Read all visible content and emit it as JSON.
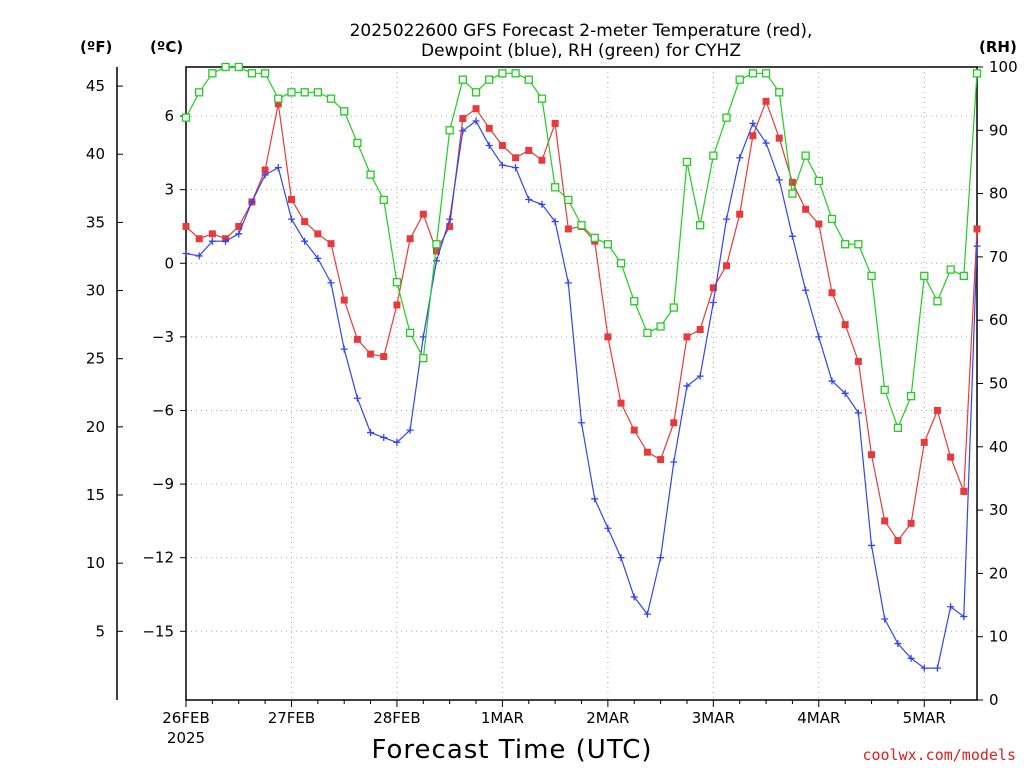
{
  "chart_data": {
    "type": "line",
    "title_line1": "2025022600 GFS Forecast 2-meter Temperature (red),",
    "title_line2": "Dewpoint (blue), RH (green) for CYHZ",
    "left_outer_unit": "(ºF)",
    "left_inner_unit": "(ºC)",
    "right_unit": "(RH)",
    "xlabel": "Forecast Time (UTC)",
    "credit": "coolwx.com/models",
    "fahrenheit_ticks": [
      "5",
      "10",
      "15",
      "20",
      "25",
      "30",
      "35",
      "40",
      "45"
    ],
    "celsius_ticks": [
      6,
      3,
      0,
      -3,
      -6,
      -9,
      -12,
      -15
    ],
    "celsius_tick_labels": [
      "6",
      "3",
      "0",
      "−3",
      "−6",
      "−9",
      "−12",
      "−15"
    ],
    "rh_ticks": [
      "0",
      "10",
      "20",
      "30",
      "40",
      "50",
      "60",
      "70",
      "80",
      "90",
      "100"
    ],
    "x_tick_labels": [
      "26FEB",
      "27FEB",
      "28FEB",
      "1MAR",
      "2MAR",
      "3MAR",
      "4MAR",
      "5MAR"
    ],
    "x_year_label": "2025",
    "x_unit": "hours since 2025-02-26 00 UTC",
    "xlim": [
      0,
      180
    ],
    "celsius_lim": [
      -17.8,
      8.0
    ],
    "rh_lim": [
      0,
      100
    ],
    "grid": true,
    "series": [
      {
        "name": "2-meter Temperature",
        "unit": "°C",
        "color": "#e83a3a",
        "marker": "square-filled",
        "x": [
          0,
          3,
          6,
          9,
          12,
          15,
          18,
          21,
          24,
          27,
          30,
          33,
          36,
          39,
          42,
          45,
          48,
          51,
          54,
          57,
          60,
          63,
          66,
          69,
          72,
          75,
          78,
          81,
          84,
          87,
          90,
          93,
          96,
          99,
          102,
          105,
          108,
          111,
          114,
          117,
          120,
          123,
          126,
          129,
          132,
          135,
          138,
          141,
          144,
          147,
          150,
          153,
          156,
          159,
          162,
          165,
          168,
          171,
          174,
          177,
          180
        ],
        "values": [
          1.5,
          1.0,
          1.2,
          1.0,
          1.5,
          2.5,
          3.8,
          6.5,
          2.6,
          1.7,
          1.2,
          0.8,
          -1.5,
          -3.1,
          -3.7,
          -3.8,
          -1.7,
          1.0,
          2.0,
          0.5,
          1.5,
          5.9,
          6.3,
          5.5,
          4.8,
          4.3,
          4.6,
          4.2,
          5.7,
          1.4,
          1.5,
          0.9,
          -3.0,
          -5.7,
          -6.8,
          -7.7,
          -8.0,
          -6.5,
          -3.0,
          -2.7,
          -1.0,
          -0.1,
          2.0,
          5.2,
          6.6,
          5.1,
          3.3,
          2.2,
          1.6,
          -1.2,
          -2.5,
          -4.0,
          -7.8,
          -10.5,
          -11.3,
          -10.6,
          -7.3,
          -6.0,
          -7.9,
          -9.3,
          1.4
        ]
      },
      {
        "name": "Dewpoint",
        "unit": "°C",
        "color": "#3344ee",
        "marker": "plus",
        "x": [
          0,
          3,
          6,
          9,
          12,
          15,
          18,
          21,
          24,
          27,
          30,
          33,
          36,
          39,
          42,
          45,
          48,
          51,
          54,
          57,
          60,
          63,
          66,
          69,
          72,
          75,
          78,
          81,
          84,
          87,
          90,
          93,
          96,
          99,
          102,
          105,
          108,
          111,
          114,
          117,
          120,
          123,
          126,
          129,
          132,
          135,
          138,
          141,
          144,
          147,
          150,
          153,
          156,
          159,
          162,
          165,
          168,
          171,
          174,
          177,
          180
        ],
        "values": [
          0.4,
          0.3,
          0.9,
          0.9,
          1.2,
          2.5,
          3.6,
          3.9,
          1.8,
          0.9,
          0.2,
          -0.8,
          -3.5,
          -5.5,
          -6.9,
          -7.1,
          -7.3,
          -6.8,
          -3.0,
          0.1,
          1.8,
          5.4,
          5.8,
          4.8,
          4.0,
          3.9,
          2.6,
          2.4,
          1.7,
          -0.8,
          -6.5,
          -9.6,
          -10.8,
          -12.0,
          -13.6,
          -14.3,
          -12.0,
          -8.1,
          -5.0,
          -4.6,
          -1.6,
          1.8,
          4.3,
          5.7,
          4.9,
          3.4,
          1.1,
          -1.1,
          -3.0,
          -4.8,
          -5.3,
          -6.1,
          -11.5,
          -14.5,
          -15.5,
          -16.1,
          -16.5,
          -16.5,
          -14.0,
          -14.4,
          0.7
        ]
      },
      {
        "name": "RH",
        "unit": "%",
        "color": "#22cc22",
        "marker": "square-open",
        "x": [
          0,
          3,
          6,
          9,
          12,
          15,
          18,
          21,
          24,
          27,
          30,
          33,
          36,
          39,
          42,
          45,
          48,
          51,
          54,
          57,
          60,
          63,
          66,
          69,
          72,
          75,
          78,
          81,
          84,
          87,
          90,
          93,
          96,
          99,
          102,
          105,
          108,
          111,
          114,
          117,
          120,
          123,
          126,
          129,
          132,
          135,
          138,
          141,
          144,
          147,
          150,
          153,
          156,
          159,
          162,
          165,
          168,
          171,
          174,
          177,
          180
        ],
        "values": [
          92,
          96,
          99,
          100,
          100,
          99,
          99,
          95,
          96,
          96,
          96,
          95,
          93,
          88,
          83,
          79,
          66,
          58,
          54,
          72,
          90,
          98,
          96,
          98,
          99,
          99,
          98,
          95,
          81,
          79,
          75,
          73,
          72,
          69,
          63,
          58,
          59,
          62,
          85,
          75,
          86,
          92,
          98,
          99,
          99,
          96,
          80,
          86,
          82,
          76,
          72,
          72,
          67,
          49,
          43,
          48,
          67,
          63,
          68,
          67,
          99
        ]
      }
    ]
  }
}
